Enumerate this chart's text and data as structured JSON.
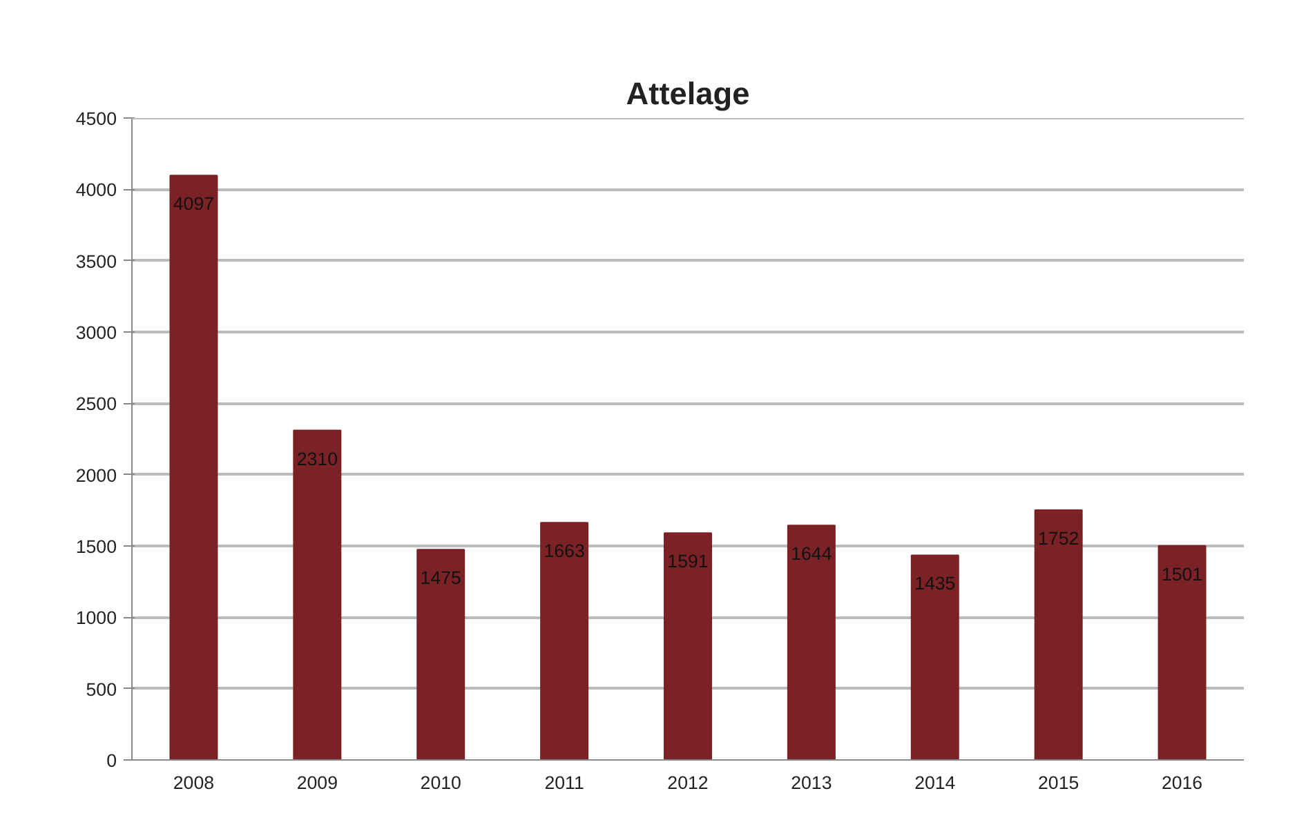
{
  "chart_data": {
    "type": "bar",
    "title": "Attelage",
    "categories": [
      "2008",
      "2009",
      "2010",
      "2011",
      "2012",
      "2013",
      "2014",
      "2015",
      "2016"
    ],
    "values": [
      4097,
      2310,
      1475,
      1663,
      1591,
      1644,
      1435,
      1752,
      1501
    ],
    "color": "#7b2226",
    "ylim": [
      0,
      4500
    ],
    "yticks": [
      0,
      500,
      1000,
      1500,
      2000,
      2500,
      3000,
      3500,
      4000,
      4500
    ],
    "grid": "y",
    "data_labels": true
  }
}
